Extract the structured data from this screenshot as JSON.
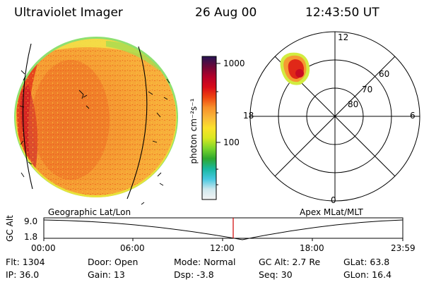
{
  "header": {
    "instrument": "Ultraviolet Imager",
    "date": "26 Aug 00",
    "time": "12:43:50 UT"
  },
  "colorbar": {
    "unit_label": "photon cm⁻²s⁻¹",
    "tick_1000": "1000",
    "tick_100": "100",
    "colors": [
      "#f4f4f4",
      "#cfe8ee",
      "#46c8e0",
      "#18b8a0",
      "#2ea82e",
      "#7cd62a",
      "#d8e820",
      "#fbe22a",
      "#f9b838",
      "#f7902a",
      "#ee4410",
      "#d80a18",
      "#b4002a",
      "#6c0838",
      "#241454"
    ]
  },
  "polar_plot": {
    "label_12": "12",
    "label_18": "18",
    "label_6": "6",
    "label_0": "0",
    "label_60": "60",
    "label_70": "70",
    "label_80": "80"
  },
  "altitude_panel": {
    "left_title": "Geographic Lat/Lon",
    "right_title": "Apex MLat/MLT",
    "axis_label": "GC Alt",
    "y_top": "9.0",
    "y_bottom": "1.8",
    "x_ticks": [
      "00:00",
      "06:00",
      "12:00",
      "18:00",
      "23:59"
    ]
  },
  "status": {
    "flt": "Flt: 1304",
    "ip": "IP: 36.0",
    "door": "Door: Open",
    "gain": "Gain: 13",
    "mode": "Mode: Normal",
    "dsp": "Dsp:    -3.8",
    "gcalt": "GC Alt: 2.7 Re",
    "seq": "Seq: 30",
    "glat": "GLat:    63.8",
    "glon": "GLon:   16.4"
  }
}
